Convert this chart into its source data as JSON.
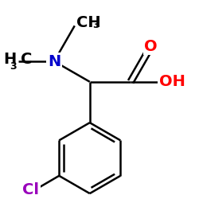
{
  "background_color": "#ffffff",
  "bond_color": "#000000",
  "bond_lw": 1.8,
  "N_color": "#0000cc",
  "O_color": "#ff0000",
  "Cl_color": "#9900bb",
  "figsize": [
    2.5,
    2.5
  ],
  "dpi": 100,
  "xlim": [
    -2.0,
    2.5
  ],
  "ylim": [
    -2.8,
    2.0
  ],
  "double_sep": 0.07,
  "font_size": 14,
  "font_size_sub": 9
}
